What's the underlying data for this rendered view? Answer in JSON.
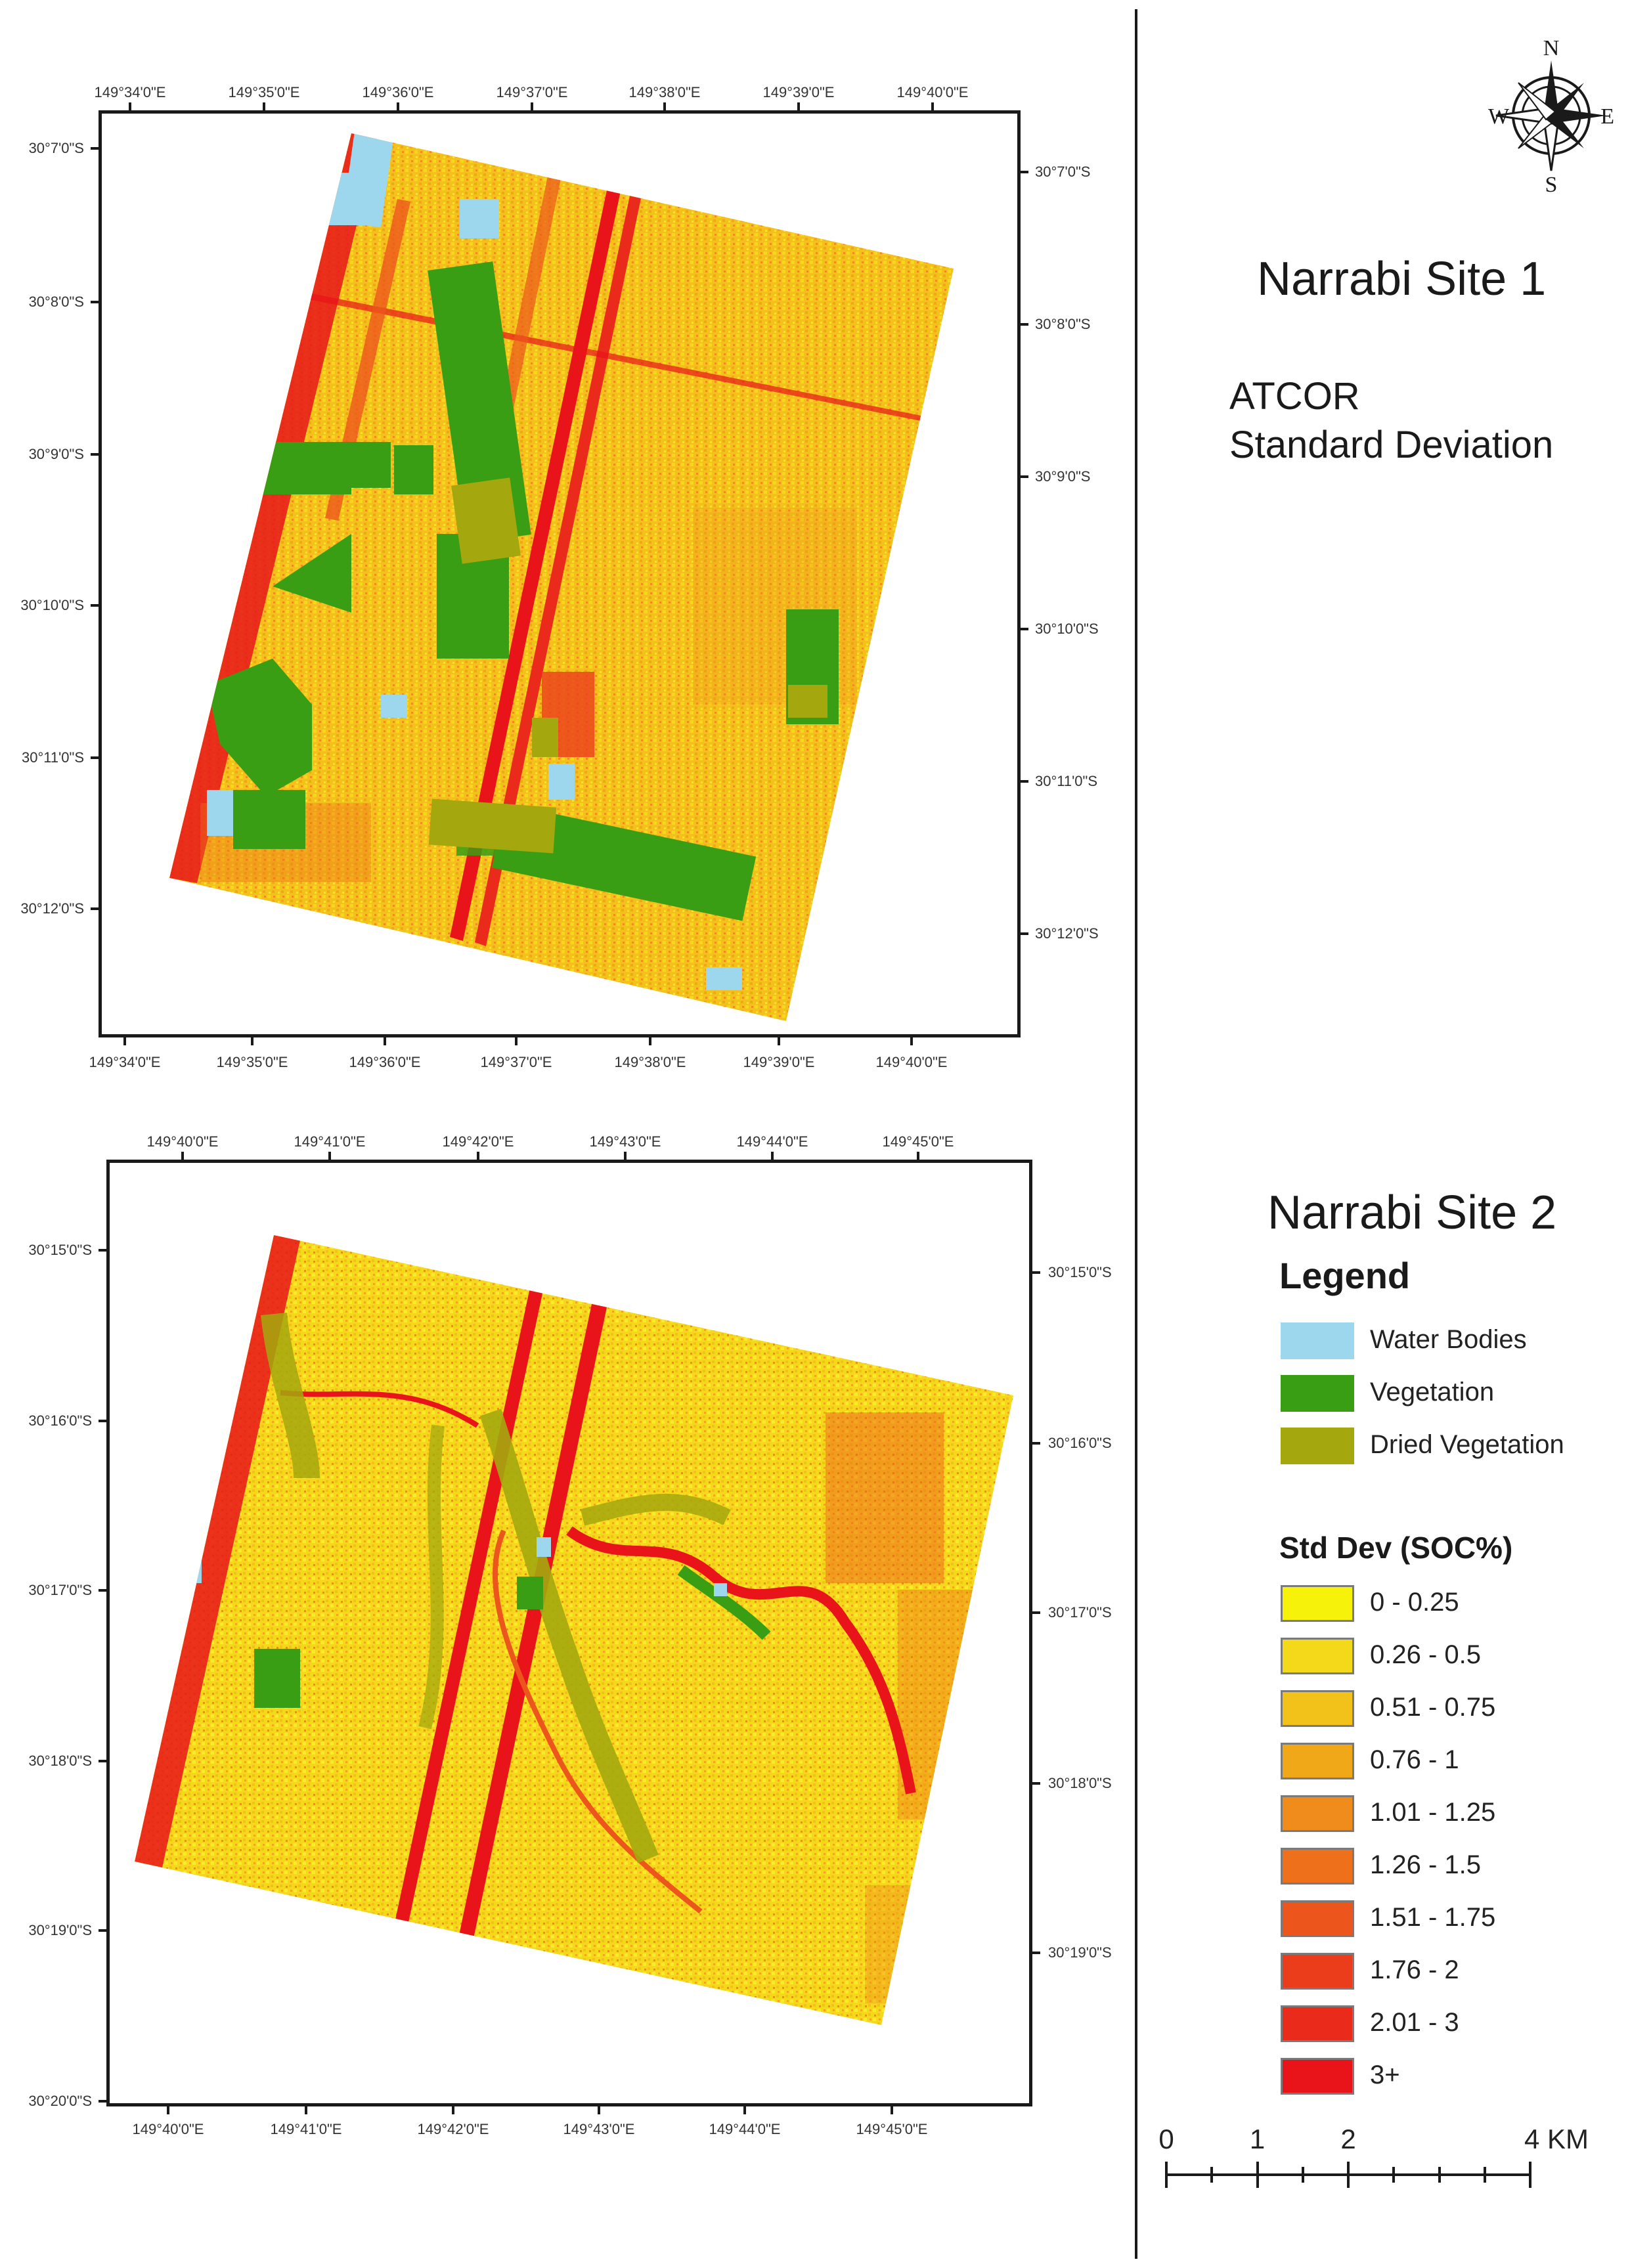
{
  "north_arrow": {
    "n": "N",
    "s": "S",
    "e": "E",
    "w": "W"
  },
  "site1": {
    "title": "Narrabi Site 1",
    "subtitle_lines": [
      "ATCOR",
      "Standard Deviation"
    ],
    "top_ticks": [
      "149°34'0\"E",
      "149°35'0\"E",
      "149°36'0\"E",
      "149°37'0\"E",
      "149°38'0\"E",
      "149°39'0\"E",
      "149°40'0\"E"
    ],
    "bottom_ticks": [
      "149°34'0\"E",
      "149°35'0\"E",
      "149°36'0\"E",
      "149°37'0\"E",
      "149°38'0\"E",
      "149°39'0\"E",
      "149°40'0\"E"
    ],
    "left_ticks": [
      "30°7'0\"S",
      "30°8'0\"S",
      "30°9'0\"S",
      "30°10'0\"S",
      "30°11'0\"S",
      "30°12'0\"S"
    ],
    "right_ticks": [
      "30°7'0\"S",
      "30°8'0\"S",
      "30°9'0\"S",
      "30°10'0\"S",
      "30°11'0\"S",
      "30°12'0\"S"
    ]
  },
  "site2": {
    "title": "Narrabi Site 2",
    "top_ticks": [
      "149°40'0\"E",
      "149°41'0\"E",
      "149°42'0\"E",
      "149°43'0\"E",
      "149°44'0\"E",
      "149°45'0\"E"
    ],
    "bottom_ticks": [
      "149°40'0\"E",
      "149°41'0\"E",
      "149°42'0\"E",
      "149°43'0\"E",
      "149°44'0\"E",
      "149°45'0\"E"
    ],
    "left_ticks": [
      "30°15'0\"S",
      "30°16'0\"S",
      "30°17'0\"S",
      "30°18'0\"S",
      "30°19'0\"S",
      "30°20'0\"S"
    ],
    "right_ticks": [
      "30°15'0\"S",
      "30°16'0\"S",
      "30°17'0\"S",
      "30°18'0\"S",
      "30°19'0\"S"
    ]
  },
  "legend": {
    "heading": "Legend",
    "land_classes": [
      {
        "label": "Water Bodies",
        "color": "#9dd7ee"
      },
      {
        "label": "Vegetation",
        "color": "#3a9e14"
      },
      {
        "label": "Dried Vegetation",
        "color": "#a4a80e"
      }
    ],
    "std_dev_title": "Std Dev (SOC%)",
    "std_dev_classes": [
      {
        "label": "0 - 0.25",
        "color": "#f6f20a"
      },
      {
        "label": "0.26 - 0.5",
        "color": "#f4d81a"
      },
      {
        "label": "0.51 - 0.75",
        "color": "#f2c21a"
      },
      {
        "label": "0.76 - 1",
        "color": "#f0a818"
      },
      {
        "label": "1.01 - 1.25",
        "color": "#ef8c1c"
      },
      {
        "label": "1.26 - 1.5",
        "color": "#ee701a"
      },
      {
        "label": "1.51 - 1.75",
        "color": "#ec561c"
      },
      {
        "label": "1.76 - 2",
        "color": "#eb3c1c"
      },
      {
        "label": "2.01 - 3",
        "color": "#ea2a1a"
      },
      {
        "label": "3+",
        "color": "#e8141a"
      }
    ]
  },
  "scale_bar": {
    "labels": [
      "0",
      "1",
      "2",
      "4 KM"
    ],
    "stops_km": [
      0,
      1,
      2,
      4
    ]
  }
}
